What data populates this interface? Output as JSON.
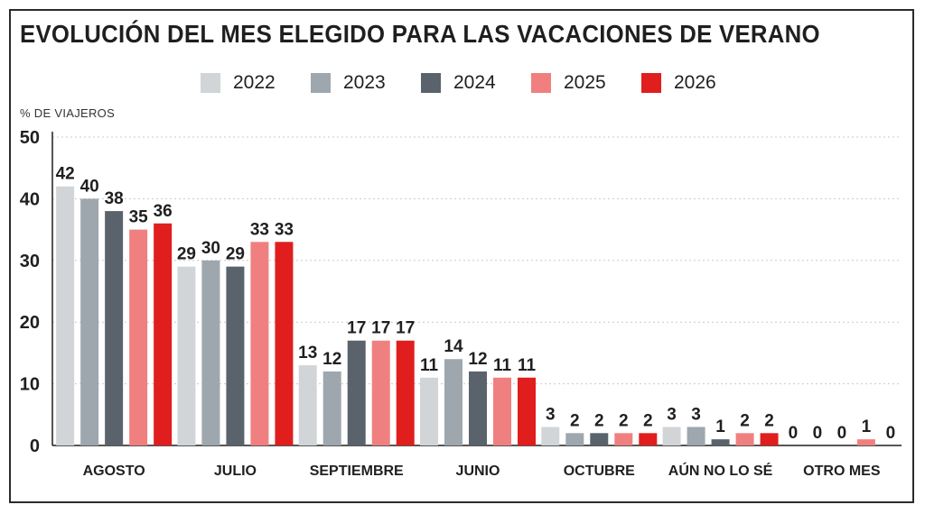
{
  "title": "EVOLUCIÓN DEL MES ELEGIDO PARA LAS VACACIONES DE VERANO",
  "unit_label": "% DE VIAJEROS",
  "chart_data": {
    "type": "bar",
    "title": "EVOLUCIÓN DEL MES ELEGIDO PARA LAS VACACIONES DE VERANO",
    "ylabel": "% DE VIAJEROS",
    "xlabel": "",
    "ylim": [
      0,
      50
    ],
    "yticks": [
      0,
      10,
      20,
      30,
      40,
      50
    ],
    "grid": true,
    "legend_position": "top",
    "categories": [
      "AGOSTO",
      "JULIO",
      "SEPTIEMBRE",
      "JUNIO",
      "OCTUBRE",
      "AÚN NO LO SÉ",
      "OTRO MES"
    ],
    "series": [
      {
        "name": "2022",
        "color": "#d2d5d8",
        "values": [
          42,
          29,
          13,
          11,
          3,
          3,
          0
        ]
      },
      {
        "name": "2023",
        "color": "#9ea7ae",
        "values": [
          40,
          30,
          12,
          14,
          2,
          3,
          0
        ]
      },
      {
        "name": "2024",
        "color": "#5a636b",
        "values": [
          38,
          29,
          17,
          12,
          2,
          1,
          0
        ]
      },
      {
        "name": "2025",
        "color": "#f08080",
        "values": [
          35,
          33,
          17,
          11,
          2,
          2,
          1
        ]
      },
      {
        "name": "2026",
        "color": "#e01e1e",
        "values": [
          36,
          33,
          17,
          11,
          2,
          2,
          0
        ]
      }
    ]
  }
}
